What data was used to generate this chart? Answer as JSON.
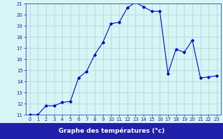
{
  "x": [
    0,
    1,
    2,
    3,
    4,
    5,
    6,
    7,
    8,
    9,
    10,
    11,
    12,
    13,
    14,
    15,
    16,
    17,
    18,
    19,
    20,
    21,
    22,
    23
  ],
  "y": [
    11.0,
    11.0,
    11.8,
    11.8,
    12.1,
    12.2,
    14.3,
    14.9,
    16.4,
    17.5,
    19.2,
    19.3,
    20.6,
    21.1,
    20.7,
    20.3,
    20.3,
    14.7,
    16.9,
    16.6,
    17.7,
    14.3,
    14.4,
    14.5
  ],
  "line_color": "#0000cc",
  "marker": "D",
  "marker_size": 1.8,
  "bg_color": "#d8f5f5",
  "grid_color": "#b8dede",
  "xlabel": "Graphe des températures (°c)",
  "xlabel_bg": "#2020aa",
  "xlabel_color": "#ffffff",
  "ylim": [
    11,
    21
  ],
  "xlim": [
    -0.5,
    23.5
  ],
  "yticks": [
    11,
    12,
    13,
    14,
    15,
    16,
    17,
    18,
    19,
    20,
    21
  ],
  "xticks": [
    0,
    1,
    2,
    3,
    4,
    5,
    6,
    7,
    8,
    9,
    10,
    11,
    12,
    13,
    14,
    15,
    16,
    17,
    18,
    19,
    20,
    21,
    22,
    23
  ],
  "tick_color": "#2020aa",
  "tick_fontsize": 5.0,
  "axis_label_fontsize": 6.5
}
